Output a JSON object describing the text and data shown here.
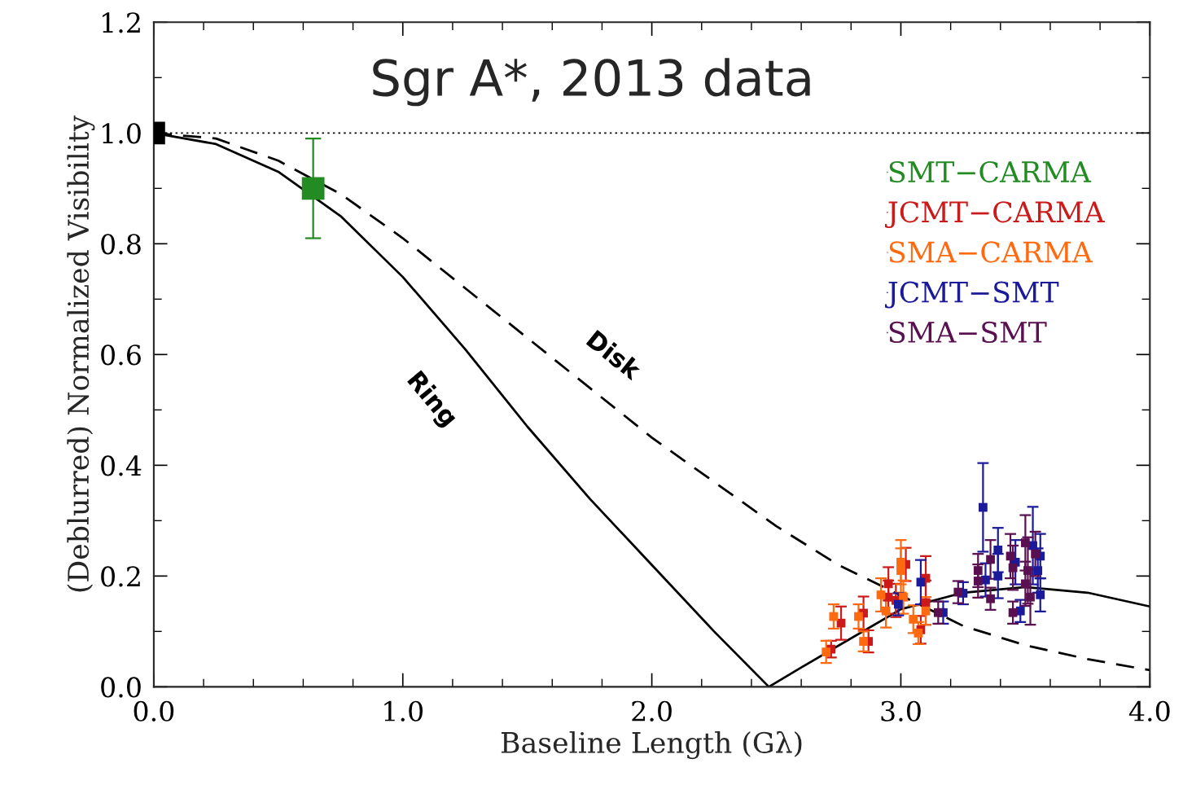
{
  "chart_data": {
    "type": "scatter",
    "title": "Sgr A*, 2013 data",
    "xlabel": "Baseline Length (Gλ)",
    "ylabel": "(Deblurred) Normalized Visibility",
    "xlim": [
      0,
      4.0
    ],
    "ylim": [
      0,
      1.2
    ],
    "xticks": [
      {
        "value": 0,
        "label": "0.0"
      },
      {
        "value": 1,
        "label": "1.0"
      },
      {
        "value": 2,
        "label": "2.0"
      },
      {
        "value": 3,
        "label": "3.0"
      },
      {
        "value": 4,
        "label": "4.0"
      }
    ],
    "yticks": [
      {
        "value": 0,
        "label": "0.0"
      },
      {
        "value": 0.2,
        "label": "0.2"
      },
      {
        "value": 0.4,
        "label": "0.4"
      },
      {
        "value": 0.6,
        "label": "0.6"
      },
      {
        "value": 0.8,
        "label": "0.8"
      },
      {
        "value": 1.0,
        "label": "1.0"
      },
      {
        "value": 1.2,
        "label": "1.2"
      }
    ],
    "grid": false,
    "legend": "top right",
    "marker": "square",
    "ref_lines": [
      {
        "axis": "y",
        "value": 1.0,
        "color": "#000000",
        "line_style": "dotted"
      }
    ],
    "series": [
      {
        "type": "line",
        "name": "Ring",
        "color": "#000000",
        "line_style": "solid",
        "marker": "none",
        "x": [
          0,
          0.25,
          0.5,
          0.75,
          1.0,
          1.25,
          1.5,
          1.75,
          2.0,
          2.25,
          2.47,
          2.6,
          3.0,
          3.25,
          3.5,
          3.75,
          4.0
        ],
        "values": [
          1.0,
          0.98,
          0.93,
          0.85,
          0.74,
          0.61,
          0.47,
          0.34,
          0.22,
          0.1,
          0.0,
          0.035,
          0.14,
          0.17,
          0.18,
          0.17,
          0.145
        ]
      },
      {
        "type": "line",
        "name": "Disk",
        "color": "#000000",
        "line_style": "dashed",
        "marker": "none",
        "x": [
          0,
          0.25,
          0.5,
          0.75,
          1.0,
          1.25,
          1.5,
          1.75,
          2.0,
          2.25,
          2.5,
          2.75,
          3.0,
          3.25,
          3.5,
          3.75,
          4.0
        ],
        "values": [
          1.0,
          0.99,
          0.95,
          0.89,
          0.81,
          0.72,
          0.63,
          0.54,
          0.45,
          0.37,
          0.29,
          0.22,
          0.165,
          0.11,
          0.075,
          0.05,
          0.03
        ]
      },
      {
        "color": "#000000",
        "x": [
          0
        ],
        "values": [
          1.0
        ]
      },
      {
        "name": "SMT−CARMA",
        "color": "#228b22",
        "x": [
          0.64
        ],
        "values": [
          0.9
        ],
        "errors": [
          0.09
        ]
      },
      {
        "name": "JCMT−CARMA",
        "color": "#cc1a1a",
        "x": [
          2.72,
          2.76,
          2.85,
          2.87,
          2.95,
          2.95,
          2.98,
          3.02,
          3.08,
          3.1,
          3.1
        ],
        "values": [
          0.068,
          0.115,
          0.133,
          0.082,
          0.186,
          0.162,
          0.156,
          0.221,
          0.103,
          0.196,
          0.152
        ],
        "errors": [
          0.015,
          0.03,
          0.03,
          0.02,
          0.03,
          0.03,
          0.03,
          0.03,
          0.025,
          0.04,
          0.04
        ]
      },
      {
        "name": "SMA−CARMA",
        "color": "#ff6a10",
        "x": [
          2.7,
          2.73,
          2.83,
          2.85,
          2.92,
          2.94,
          3.0,
          3.0,
          3.01,
          3.05,
          3.07,
          3.1
        ],
        "values": [
          0.063,
          0.127,
          0.127,
          0.082,
          0.166,
          0.137,
          0.225,
          0.21,
          0.162,
          0.122,
          0.097,
          0.137
        ],
        "errors": [
          0.02,
          0.022,
          0.022,
          0.018,
          0.03,
          0.03,
          0.04,
          0.04,
          0.03,
          0.025,
          0.02,
          0.025
        ]
      },
      {
        "name": "JCMT−SMT",
        "color": "#1a1a9a",
        "x": [
          2.99,
          3.08,
          3.17,
          3.25,
          3.33,
          3.34,
          3.39,
          3.39,
          3.46,
          3.48,
          3.53,
          3.55,
          3.56,
          3.56
        ],
        "values": [
          0.149,
          0.189,
          0.134,
          0.169,
          0.324,
          0.193,
          0.247,
          0.2,
          0.225,
          0.137,
          0.255,
          0.21,
          0.236,
          0.166
        ],
        "errors": [
          0.02,
          0.04,
          0.02,
          0.02,
          0.08,
          0.03,
          0.04,
          0.04,
          0.04,
          0.02,
          0.07,
          0.04,
          0.04,
          0.03
        ]
      },
      {
        "name": "SMA−SMT",
        "color": "#5a1050",
        "x": [
          3.15,
          3.23,
          3.31,
          3.31,
          3.36,
          3.36,
          3.44,
          3.45,
          3.45,
          3.5,
          3.51,
          3.52,
          3.5,
          3.54
        ],
        "values": [
          0.134,
          0.171,
          0.191,
          0.21,
          0.23,
          0.159,
          0.236,
          0.215,
          0.134,
          0.26,
          0.21,
          0.162,
          0.186,
          0.24
        ],
        "errors": [
          0.02,
          0.02,
          0.03,
          0.03,
          0.035,
          0.02,
          0.04,
          0.04,
          0.02,
          0.05,
          0.06,
          0.05,
          0.04,
          0.04
        ]
      }
    ]
  }
}
